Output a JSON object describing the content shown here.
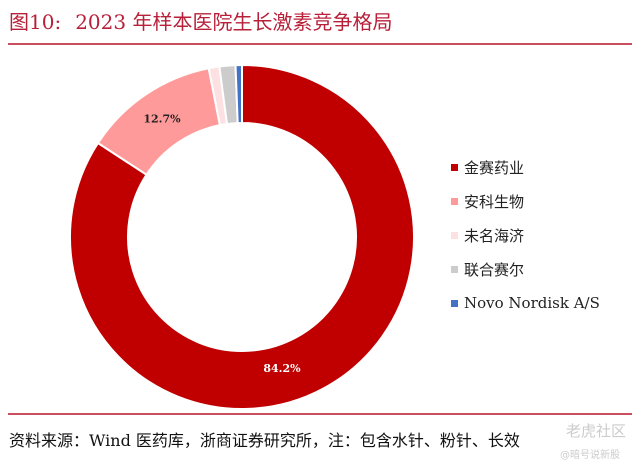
{
  "title": {
    "figure_no": "图10:",
    "text": "2023 年样本医院生长激素竞争格局"
  },
  "source": "资料来源：Wind 医药库，浙商证券研究所，注：包含水针、粉针、长效",
  "watermark": {
    "line1": "老虎社区",
    "line2": "@暗号说新股"
  },
  "chart_data": {
    "type": "pie",
    "donut": true,
    "title": "",
    "categories": [
      "金赛药业",
      "安科生物",
      "未名海济",
      "联合赛尔",
      "Novo Nordisk A/S"
    ],
    "values": [
      84.2,
      12.7,
      1.0,
      1.5,
      0.6
    ],
    "data_labels": [
      "84.2%",
      "12.7%",
      "",
      "",
      ""
    ],
    "colors": [
      "#c00000",
      "#ff9a9a",
      "#fde0e2",
      "#cccccc",
      "#4472c4"
    ],
    "start_angle": "12 o'clock",
    "direction": "clockwise",
    "legend_position": "right"
  }
}
